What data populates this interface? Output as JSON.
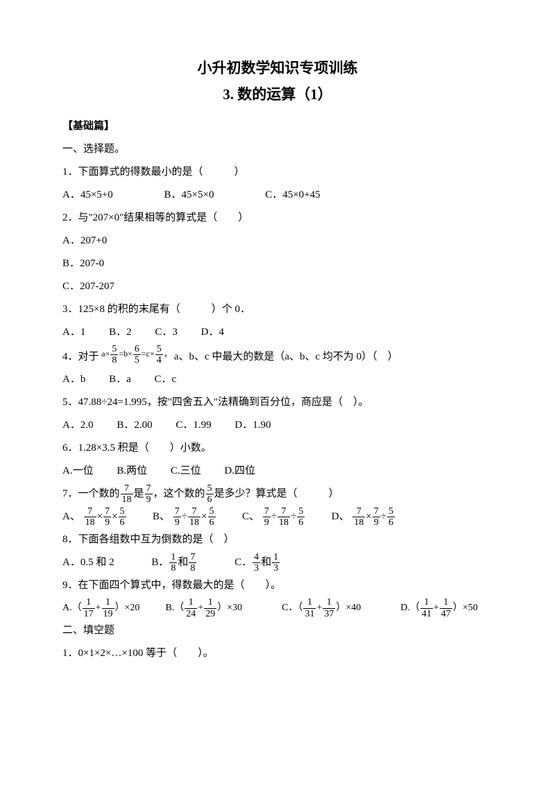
{
  "title": "小升初数学知识专项训练",
  "subtitle": "3. 数的运算（1）",
  "section_basic": "【基础篇】",
  "sec1_heading": "一、选择题。",
  "q1": {
    "text": "1．下面算式的得数最小的是（　　　）",
    "a": "A．45×5+0",
    "b": "B．45×5×0",
    "c": "C．45×0+45"
  },
  "q2": {
    "text": "2．与\"207×0\"结果相等的算式是（　　）",
    "a": "A．207+0",
    "b": "B．207-0",
    "c": "C．207-207"
  },
  "q3": {
    "text": "3．125×8 的积的末尾有（　　　）个 0．",
    "a": "A．1",
    "b": "B．2",
    "c": "C．3",
    "d": "D．4"
  },
  "q4": {
    "pre": "4．对于",
    "expr_a": "a×",
    "f1n": "5",
    "f1d": "8",
    "eq1": "=b×",
    "f2n": "6",
    "f2d": "5",
    "eq2": "=c×",
    "f3n": "5",
    "f3d": "4",
    "comma": "，",
    "post": "a、b、c 中最大的数是（a、b、c 均不为 0）（　）",
    "a": "A．b",
    "b": "B．a",
    "c": "C．c"
  },
  "q5": {
    "text": "5．47.88÷24=1.995，按\"四舍五入\"法精确到百分位，商应是（　）。",
    "a": "A．2.0",
    "b": "B．2.00",
    "c": "C．1.99",
    "d": "D．1.90"
  },
  "q6": {
    "text": "6．1.28×3.5 积是（　　）小数。",
    "a": "A.一位",
    "b": "B.两位",
    "c": "C.三位",
    "d": "D.四位"
  },
  "q7": {
    "pre": "7．一个数的",
    "f1n": "7",
    "f1d": "18",
    "mid1": "是",
    "f2n": "7",
    "f2d": "9",
    "mid2": "，这个数的",
    "f3n": "5",
    "f3d": "6",
    "post": "是多少？算式是（　　　）",
    "a": "A、",
    "b": "B、",
    "c": "C、",
    "d": "D、",
    "times": "×",
    "div": "÷",
    "an": "7",
    "ad": "18",
    "bn": "7",
    "bd": "9",
    "cn": "5",
    "cd": "6"
  },
  "q8": {
    "text": "8．下面各组数中互为倒数的是（　）",
    "a": "A．0.5 和 2",
    "b": "B．",
    "c": "C．",
    "and": "和",
    "b1n": "1",
    "b1d": "8",
    "b2n": "7",
    "b2d": "8",
    "c1n": "4",
    "c1d": "3",
    "c2n": "1",
    "c2d": "3"
  },
  "q9": {
    "text": "9．在下面四个算式中，得数最大的是（　　）。",
    "a": "A.（",
    "b": "B.（",
    "c": "C．（",
    "d": "D.（",
    "plus": "+",
    "close1": "）×20",
    "close2": "）×30",
    "close3": "）×40",
    "close4": "）×50",
    "a1n": "1",
    "a1d": "17",
    "a2n": "1",
    "a2d": "19",
    "b1n": "1",
    "b1d": "24",
    "b2n": "1",
    "b2d": "29",
    "c1n": "1",
    "c1d": "31",
    "c2n": "1",
    "c2d": "37",
    "d1n": "1",
    "d1d": "41",
    "d2n": "1",
    "d2d": "47"
  },
  "sec2_heading": "二、填空题",
  "f1": "1．0×1×2×…×100 等于（　　）。"
}
